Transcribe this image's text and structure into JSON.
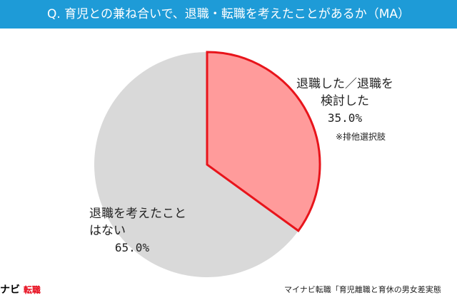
{
  "chart_data": {
    "type": "pie",
    "title": "Q. 育児との兼ね合いで、退職・転職を考えたことがあるか（MA）",
    "categories": [
      "退職した／退職を検討した",
      "退職を考えたことはない"
    ],
    "values": [
      35.0,
      65.0
    ],
    "value_labels": [
      "35.0%",
      "65.0%"
    ],
    "colors": [
      "#ff9b9b",
      "#d9d9d9"
    ],
    "annotation": "※排他選択肢",
    "logo": [
      "ナビ",
      "転職"
    ],
    "source": "マイナビ転職「育児離職と育休の男女差実態"
  }
}
